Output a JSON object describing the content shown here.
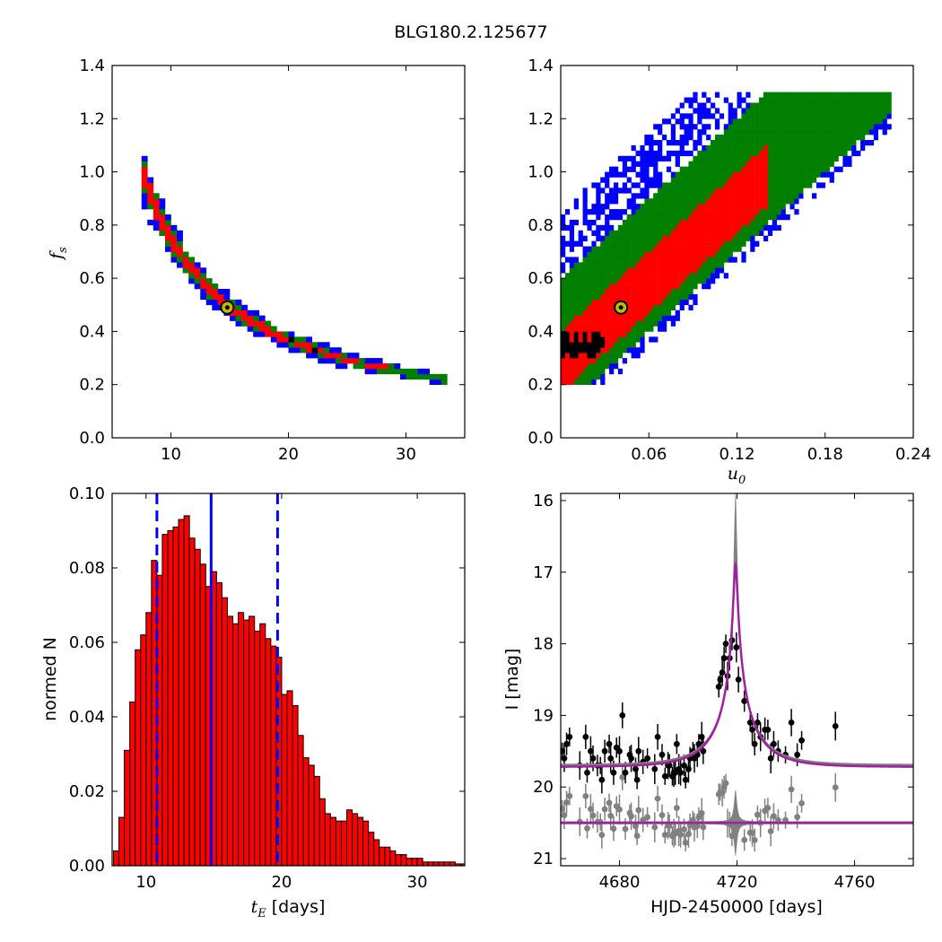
{
  "title": "BLG180.2.125677",
  "colors": {
    "blue": "#0000ff",
    "green": "#007f00",
    "red": "#ff0000",
    "black": "#000000",
    "marker": "#bfbf00",
    "gray": "#808080",
    "fit": "#a020a0"
  },
  "chart_data": [
    {
      "type": "heatmap",
      "panel": "top-left",
      "xlabel": "",
      "ylabel": "f_s",
      "ylabel_main": "f",
      "ylabel_sub": "s",
      "xlim": [
        5,
        35
      ],
      "ylim": [
        0.0,
        1.4
      ],
      "xticks": [
        "10",
        "20",
        "30"
      ],
      "yticks": [
        "0.0",
        "0.2",
        "0.4",
        "0.6",
        "0.8",
        "1.0",
        "1.2",
        "1.4"
      ],
      "description_levels": [
        "black",
        "red",
        "green",
        "blue"
      ],
      "relation": "f_s ≈ 7.3 / t_E",
      "band_x_range": [
        7.5,
        33.5
      ],
      "band_y_range": [
        0.2,
        1.3
      ],
      "best_fit": {
        "x": 14.8,
        "y": 0.49
      }
    },
    {
      "type": "heatmap",
      "panel": "top-right",
      "xlabel": "u_0",
      "xlabel_main": "u",
      "xlabel_sub": "0",
      "ylabel": "",
      "xlim": [
        0.0,
        0.24
      ],
      "ylim": [
        0.0,
        1.4
      ],
      "xticks": [
        "0.06",
        "0.12",
        "0.18",
        "0.24"
      ],
      "yticks": [
        "0.0",
        "0.2",
        "0.4",
        "0.6",
        "0.8",
        "1.0",
        "1.2",
        "1.4"
      ],
      "band_x_range": [
        0.0,
        0.225
      ],
      "band_y_range": [
        0.2,
        1.3
      ],
      "best_fit": {
        "x": 0.041,
        "y": 0.49
      }
    },
    {
      "type": "bar",
      "panel": "bottom-left",
      "xlabel": "t_E [days]",
      "xlabel_main": "t",
      "xlabel_sub": "E",
      "xlabel_unit": "[days]",
      "ylabel": "normed N",
      "xlim": [
        7.5,
        33.5
      ],
      "ylim": [
        0.0,
        0.1
      ],
      "xticks": [
        "10",
        "20",
        "30"
      ],
      "yticks": [
        "0.00",
        "0.02",
        "0.04",
        "0.06",
        "0.08",
        "0.10"
      ],
      "bin_width": 0.4,
      "bin_start": 7.6,
      "values": [
        0.004,
        0.013,
        0.031,
        0.044,
        0.058,
        0.062,
        0.068,
        0.082,
        0.078,
        0.089,
        0.09,
        0.091,
        0.093,
        0.094,
        0.088,
        0.085,
        0.081,
        0.075,
        0.079,
        0.076,
        0.072,
        0.067,
        0.065,
        0.068,
        0.066,
        0.067,
        0.063,
        0.065,
        0.061,
        0.059,
        0.056,
        0.046,
        0.047,
        0.043,
        0.035,
        0.029,
        0.027,
        0.024,
        0.018,
        0.014,
        0.013,
        0.012,
        0.012,
        0.015,
        0.014,
        0.013,
        0.012,
        0.009,
        0.007,
        0.005,
        0.005,
        0.004,
        0.003,
        0.003,
        0.002,
        0.002,
        0.002,
        0.001,
        0.001,
        0.001,
        0.001,
        0.001,
        0.001,
        0.0005,
        0.0005
      ],
      "median": 14.8,
      "lower": 10.8,
      "upper": 19.7
    },
    {
      "type": "scatter",
      "panel": "bottom-right",
      "xlabel": "HJD-2450000 [days]",
      "ylabel": "I [mag]",
      "xlim": [
        4660,
        4780
      ],
      "ylim": [
        21.1,
        15.9
      ],
      "xticks": [
        "4680",
        "4720",
        "4760"
      ],
      "yticks": [
        "16",
        "17",
        "18",
        "19",
        "20",
        "21"
      ],
      "model": {
        "t0": 4719.5,
        "baseline": 19.72,
        "peak": 17.0,
        "residual_level": 20.5
      },
      "data_points": [
        [
          4660.5,
          19.5
        ],
        [
          4661.2,
          19.6
        ],
        [
          4662.0,
          19.4
        ],
        [
          4663.0,
          19.3
        ],
        [
          4666.5,
          19.7
        ],
        [
          4668.5,
          19.3
        ],
        [
          4669.0,
          19.8
        ],
        [
          4670.2,
          19.5
        ],
        [
          4671.0,
          19.6
        ],
        [
          4672.5,
          19.7
        ],
        [
          4673.5,
          19.7
        ],
        [
          4674.0,
          19.9
        ],
        [
          4675.0,
          19.5
        ],
        [
          4676.5,
          19.4
        ],
        [
          4677.0,
          19.6
        ],
        [
          4678.0,
          19.8
        ],
        [
          4679.0,
          19.45
        ],
        [
          4680.0,
          19.5
        ],
        [
          4681.0,
          19.0
        ],
        [
          4682.0,
          19.8
        ],
        [
          4683.5,
          19.55
        ],
        [
          4684.0,
          19.6
        ],
        [
          4685.5,
          19.75
        ],
        [
          4686.0,
          19.9
        ],
        [
          4686.5,
          19.5
        ],
        [
          4688.0,
          19.65
        ],
        [
          4689.5,
          19.6
        ],
        [
          4692.0,
          19.75
        ],
        [
          4693.0,
          19.3
        ],
        [
          4694.5,
          19.55
        ],
        [
          4695.5,
          19.85
        ],
        [
          4696.5,
          19.7
        ],
        [
          4697.0,
          19.7
        ],
        [
          4698.0,
          19.85
        ],
        [
          4698.5,
          19.8
        ],
        [
          4699.0,
          19.8
        ],
        [
          4699.5,
          19.4
        ],
        [
          4700.2,
          19.75
        ],
        [
          4700.8,
          19.8
        ],
        [
          4702.0,
          19.7
        ],
        [
          4702.5,
          19.9
        ],
        [
          4703.5,
          19.75
        ],
        [
          4704.0,
          19.6
        ],
        [
          4705.0,
          19.5
        ],
        [
          4705.5,
          19.6
        ],
        [
          4706.5,
          19.55
        ],
        [
          4707.0,
          19.4
        ],
        [
          4708.0,
          19.3
        ],
        [
          4708.5,
          19.5
        ],
        [
          4713.8,
          18.6
        ],
        [
          4714.3,
          18.5
        ],
        [
          4715.0,
          18.4
        ],
        [
          4715.6,
          18.2
        ],
        [
          4716.2,
          18.0
        ],
        [
          4716.8,
          18.45
        ],
        [
          4717.5,
          18.2
        ],
        [
          4718.3,
          17.95
        ],
        [
          4719.8,
          18.05
        ],
        [
          4720.5,
          18.5
        ],
        [
          4722.5,
          18.8
        ],
        [
          4724.5,
          19.1
        ],
        [
          4725.2,
          19.2
        ],
        [
          4726.0,
          19.4
        ],
        [
          4727.0,
          19.1
        ],
        [
          4728.0,
          19.3
        ],
        [
          4729.5,
          19.2
        ],
        [
          4730.5,
          19.2
        ],
        [
          4731.5,
          19.6
        ],
        [
          4732.5,
          19.4
        ],
        [
          4734.0,
          19.5
        ],
        [
          4736.5,
          19.55
        ],
        [
          4738.5,
          19.1
        ],
        [
          4740.5,
          19.55
        ],
        [
          4742.0,
          19.35
        ],
        [
          4753.5,
          19.15
        ]
      ]
    }
  ]
}
